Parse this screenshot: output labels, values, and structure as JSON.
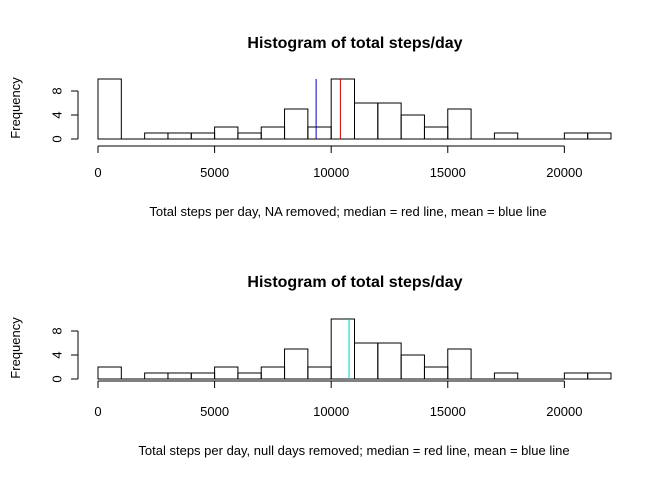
{
  "chart_data": [
    {
      "type": "bar",
      "title": "Histogram of total steps/day",
      "xlabel": "Total steps per day, NA removed; median = red line, mean = blue line",
      "ylabel": "Frequency",
      "bin_width": 1000,
      "bins_start": 0,
      "values": [
        10,
        0,
        1,
        1,
        1,
        2,
        1,
        2,
        5,
        2,
        10,
        6,
        6,
        4,
        2,
        5,
        0,
        1,
        0,
        0,
        1,
        1
      ],
      "xlim": [
        0,
        22000
      ],
      "ylim": [
        0,
        10
      ],
      "x_ticks": [
        0,
        5000,
        10000,
        15000,
        20000
      ],
      "x_tick_labels": [
        "0",
        "5000",
        "10000",
        "15000",
        "20000"
      ],
      "y_ticks": [
        0,
        4,
        8
      ],
      "y_tick_labels": [
        "0",
        "4",
        "8"
      ],
      "vlines": [
        {
          "x": 9354,
          "color": "#0000cc"
        },
        {
          "x": 10395,
          "color": "#cc0000"
        }
      ]
    },
    {
      "type": "bar",
      "title": "Histogram of total steps/day",
      "xlabel": "Total steps per day, null days removed; median = red line, mean = blue line",
      "ylabel": "Frequency",
      "bin_width": 1000,
      "bins_start": 0,
      "values": [
        2,
        0,
        1,
        1,
        1,
        2,
        1,
        2,
        5,
        2,
        10,
        6,
        6,
        4,
        2,
        5,
        0,
        1,
        0,
        0,
        1,
        1
      ],
      "xlim": [
        0,
        22000
      ],
      "ylim": [
        0,
        10
      ],
      "x_ticks": [
        0,
        5000,
        10000,
        15000,
        20000
      ],
      "x_tick_labels": [
        "0",
        "5000",
        "10000",
        "15000",
        "20000"
      ],
      "y_ticks": [
        0,
        4,
        8
      ],
      "y_tick_labels": [
        "0",
        "4",
        "8"
      ],
      "vlines": [
        {
          "x": 10766,
          "color": "#cc0000"
        },
        {
          "x": 10765,
          "color": "#00dddd"
        }
      ]
    }
  ]
}
